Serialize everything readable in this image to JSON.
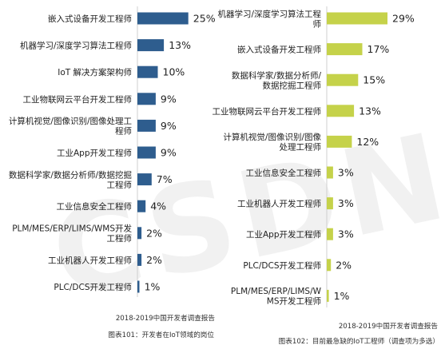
{
  "charts": [
    {
      "source": "2018-2019中国开发者调查报告",
      "caption": "图表101：开发者在IoT领域的岗位"
    },
    {
      "source": "2018-2019中国开发者调查报告",
      "caption": "图表102：目前最急缺的IoT工程师（调查项为多选）"
    }
  ],
  "watermark": "CSDN",
  "chart_data": [
    {
      "type": "bar",
      "orientation": "horizontal",
      "color": "#2e5d8e",
      "value_suffix": "%",
      "categories": [
        [
          "嵌入式设备开发工程师"
        ],
        [
          "机器学习/深度学习算法工程师"
        ],
        [
          "IoT 解决方案架构师"
        ],
        [
          "工业物联网云平台开发工程师"
        ],
        [
          "计算机视觉/图像识别/图像处理工",
          "程师"
        ],
        [
          "工业App开发工程师"
        ],
        [
          "数据科学家/数据分析师/数据挖掘",
          "工程师"
        ],
        [
          "工业信息安全工程师"
        ],
        [
          "PLM/MES/ERP/LIMS/WMS开发",
          "工程师"
        ],
        [
          "工业机器人开发工程师"
        ],
        [
          "PLC/DCS开发工程师"
        ]
      ],
      "values": [
        25,
        13,
        10,
        9,
        9,
        9,
        7,
        4,
        2,
        2,
        1
      ]
    },
    {
      "type": "bar",
      "orientation": "horizontal",
      "color": "#c5d24a",
      "value_suffix": "%",
      "categories": [
        [
          "机器学习/深度学习算法工程",
          "师"
        ],
        [
          "嵌入式设备开发工程师"
        ],
        [
          "数据科学家/数据分析师/",
          "数据挖掘工程师"
        ],
        [
          "工业物联网云平台开发工程师"
        ],
        [
          "计算机视觉/图像识别/图像",
          "处理工程师"
        ],
        [
          "工业信息安全工程师"
        ],
        [
          "工业机器人开发工程师"
        ],
        [
          "工业App开发工程师"
        ],
        [
          "PLC/DCS开发工程师"
        ],
        [
          "PLM/MES/ERP/LIMS/W",
          "MS开发工程师"
        ]
      ],
      "values": [
        29,
        17,
        15,
        13,
        12,
        3,
        3,
        3,
        2,
        1
      ]
    }
  ]
}
